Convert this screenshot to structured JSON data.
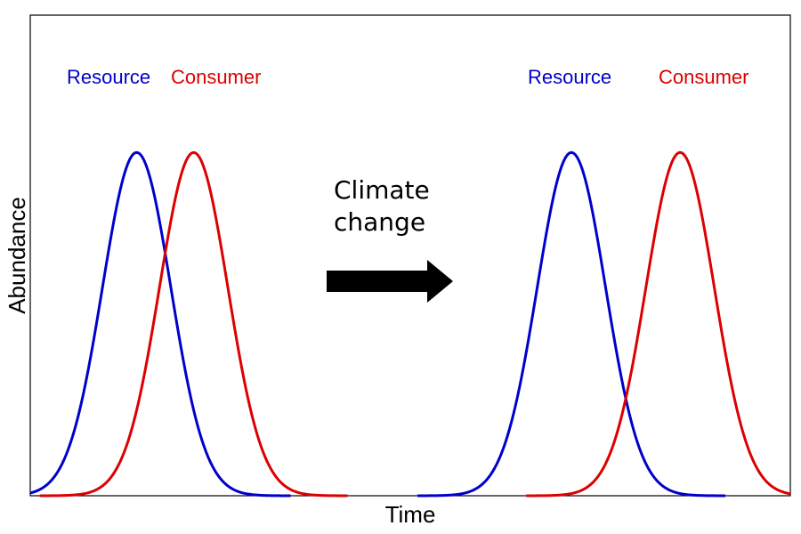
{
  "colors": {
    "resource": "#0000cc",
    "consumer": "#dd0000",
    "axis": "#000000",
    "arrow": "#000000"
  },
  "axes": {
    "xlabel": "Time",
    "ylabel": "Abundance"
  },
  "annotation": {
    "line1": "Climate",
    "line2": "change"
  },
  "panels": [
    {
      "resource_label": "Resource",
      "consumer_label": "Consumer"
    },
    {
      "resource_label": "Resource",
      "consumer_label": "Consumer"
    }
  ],
  "chart_data": {
    "type": "line",
    "xlabel": "Time",
    "ylabel": "Abundance",
    "grid": false,
    "series": [
      {
        "name": "Resource",
        "color": "#0000cc",
        "shape": "gaussian",
        "peak_x": 0.14,
        "sd": 0.045,
        "peak_y": 1.0
      },
      {
        "name": "Consumer",
        "color": "#dd0000",
        "shape": "gaussian",
        "peak_x": 0.215,
        "sd": 0.045,
        "peak_y": 1.0
      },
      {
        "name": "Resource",
        "color": "#0000cc",
        "shape": "gaussian",
        "peak_x": 0.712,
        "sd": 0.045,
        "peak_y": 1.0
      },
      {
        "name": "Consumer",
        "color": "#dd0000",
        "shape": "gaussian",
        "peak_x": 0.855,
        "sd": 0.045,
        "peak_y": 1.0
      }
    ],
    "xlim": [
      0,
      1
    ],
    "ylim": [
      0,
      1.4
    ]
  }
}
